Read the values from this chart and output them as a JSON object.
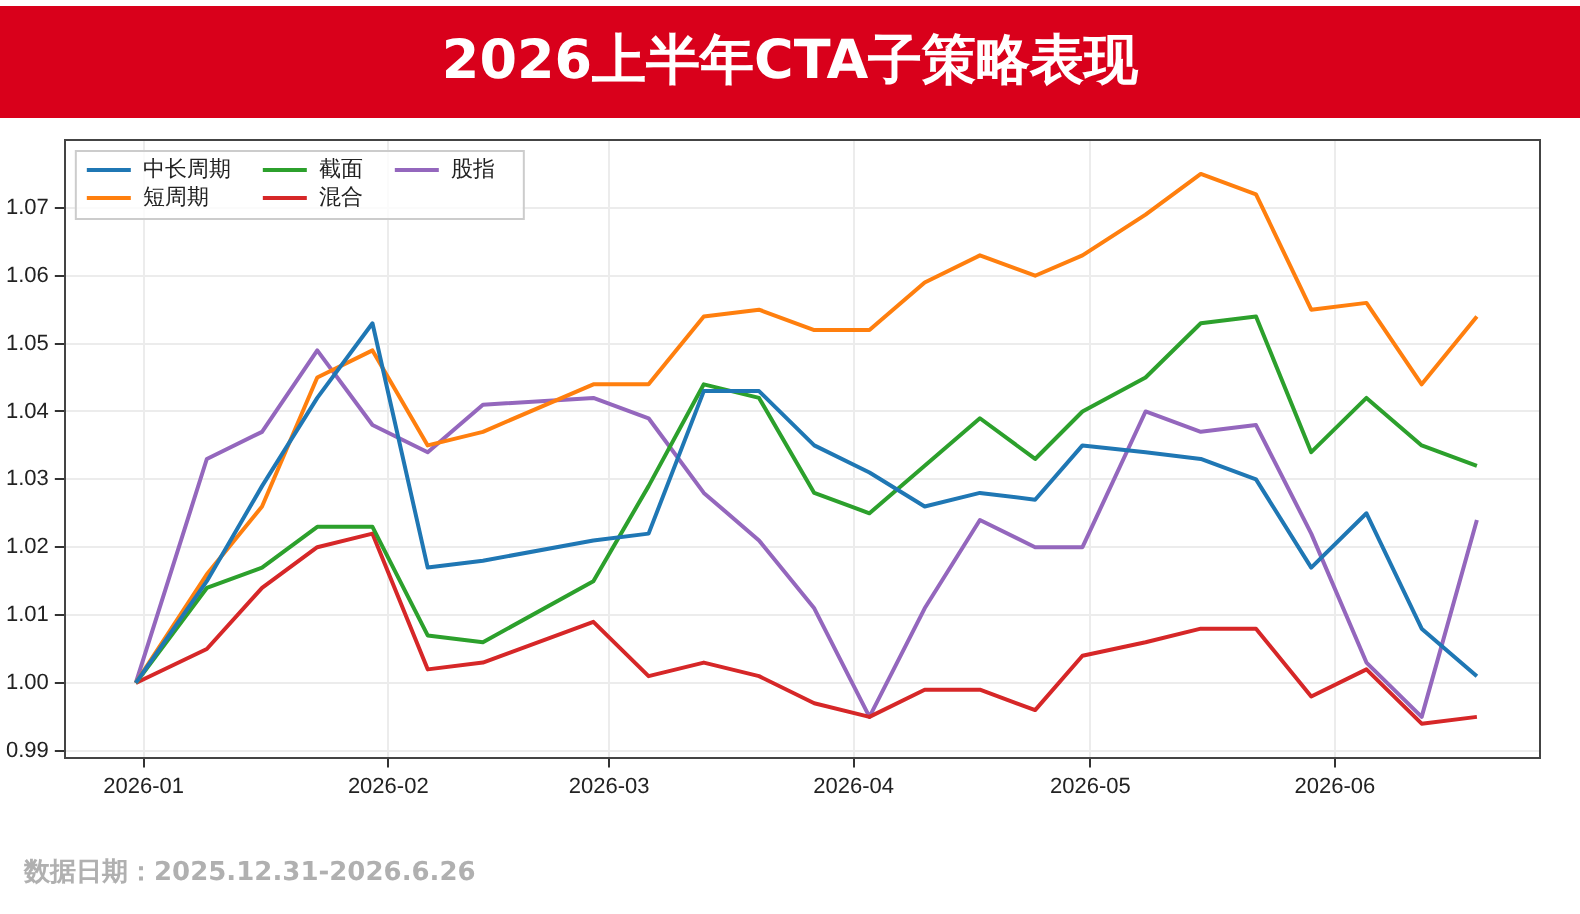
{
  "chart_data": {
    "type": "line",
    "title": "2026上半年CTA子策略表现",
    "x": [
      "2025-12-31",
      "2026-01-09",
      "2026-01-16",
      "2026-01-23",
      "2026-01-30",
      "2026-02-06",
      "2026-02-13",
      "2026-02-27",
      "2026-03-06",
      "2026-03-13",
      "2026-03-20",
      "2026-03-27",
      "2026-04-03",
      "2026-04-10",
      "2026-04-17",
      "2026-04-24",
      "2026-04-30",
      "2026-05-08",
      "2026-05-15",
      "2026-05-22",
      "2026-05-29",
      "2026-06-05",
      "2026-06-12",
      "2026-06-19"
    ],
    "series": [
      {
        "name": "中长周期",
        "color": "#1f77b4",
        "values": [
          1.0,
          1.015,
          1.029,
          1.042,
          1.053,
          1.017,
          1.018,
          1.021,
          1.022,
          1.043,
          1.043,
          1.035,
          1.031,
          1.026,
          1.028,
          1.027,
          1.035,
          1.034,
          1.033,
          1.03,
          1.017,
          1.025,
          1.008,
          1.001
        ]
      },
      {
        "name": "短周期",
        "color": "#ff7f0e",
        "values": [
          1.0,
          1.016,
          1.026,
          1.045,
          1.049,
          1.035,
          1.037,
          1.044,
          1.044,
          1.054,
          1.055,
          1.052,
          1.052,
          1.059,
          1.063,
          1.06,
          1.063,
          1.069,
          1.075,
          1.072,
          1.055,
          1.056,
          1.044,
          1.054
        ]
      },
      {
        "name": "截面",
        "color": "#2ca02c",
        "values": [
          1.0,
          1.014,
          1.017,
          1.023,
          1.023,
          1.007,
          1.006,
          1.015,
          1.029,
          1.044,
          1.042,
          1.028,
          1.025,
          1.032,
          1.039,
          1.033,
          1.04,
          1.045,
          1.053,
          1.054,
          1.034,
          1.042,
          1.035,
          1.032
        ]
      },
      {
        "name": "混合",
        "color": "#d62728",
        "values": [
          1.0,
          1.005,
          1.014,
          1.02,
          1.022,
          1.002,
          1.003,
          1.009,
          1.001,
          1.003,
          1.001,
          0.997,
          0.995,
          0.999,
          0.999,
          0.996,
          1.004,
          1.006,
          1.008,
          1.008,
          0.998,
          1.002,
          0.994,
          0.995
        ]
      },
      {
        "name": "股指",
        "color": "#9467bd",
        "values": [
          1.0,
          1.033,
          1.037,
          1.049,
          1.038,
          1.034,
          1.041,
          1.042,
          1.039,
          1.028,
          1.021,
          1.011,
          0.995,
          1.011,
          1.024,
          1.02,
          1.02,
          1.04,
          1.037,
          1.038,
          1.022,
          1.003,
          0.995,
          1.024
        ]
      }
    ],
    "xlim": [
      "2025-12-22",
      "2026-06-27"
    ],
    "xticks": [
      {
        "value": "2026-01-01",
        "label": "2026-01"
      },
      {
        "value": "2026-02-01",
        "label": "2026-02"
      },
      {
        "value": "2026-03-01",
        "label": "2026-03"
      },
      {
        "value": "2026-04-01",
        "label": "2026-04"
      },
      {
        "value": "2026-05-01",
        "label": "2026-05"
      },
      {
        "value": "2026-06-01",
        "label": "2026-06"
      }
    ],
    "ylim": [
      0.989,
      1.08
    ],
    "yticks": [
      {
        "value": 0.99,
        "label": "0.99"
      },
      {
        "value": 1.0,
        "label": "1.00"
      },
      {
        "value": 1.01,
        "label": "1.01"
      },
      {
        "value": 1.02,
        "label": "1.02"
      },
      {
        "value": 1.03,
        "label": "1.03"
      },
      {
        "value": 1.04,
        "label": "1.04"
      },
      {
        "value": 1.05,
        "label": "1.05"
      },
      {
        "value": 1.06,
        "label": "1.06"
      },
      {
        "value": 1.07,
        "label": "1.07"
      }
    ],
    "grid": true,
    "legend": "top left",
    "marker": "none",
    "line_style": "solid",
    "annotations": [
      "数据日期：2025.12.31-2026.6.26"
    ]
  }
}
